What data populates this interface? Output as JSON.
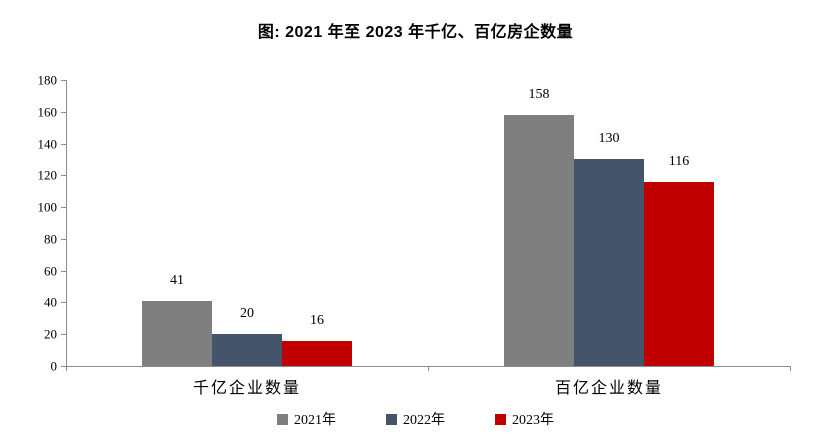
{
  "title": "图: 2021 年至 2023 年千亿、百亿房企数量",
  "chart_data": {
    "type": "bar",
    "title": "图: 2021 年至 2023 年千亿、百亿房企数量",
    "categories": [
      "千亿企业数量",
      "百亿企业数量"
    ],
    "series": [
      {
        "name": "2021年",
        "color": "#7F7F7F",
        "values": [
          41,
          158
        ]
      },
      {
        "name": "2022年",
        "color": "#44546A",
        "values": [
          20,
          130
        ]
      },
      {
        "name": "2023年",
        "color": "#C00000",
        "values": [
          16,
          116
        ]
      }
    ],
    "ylim": [
      0,
      180
    ],
    "yticks": [
      0,
      20,
      40,
      60,
      80,
      100,
      120,
      140,
      160,
      180
    ],
    "grid": false,
    "legend_position": "bottom",
    "data_labels": true,
    "axis_color": "#8C8C8C"
  }
}
